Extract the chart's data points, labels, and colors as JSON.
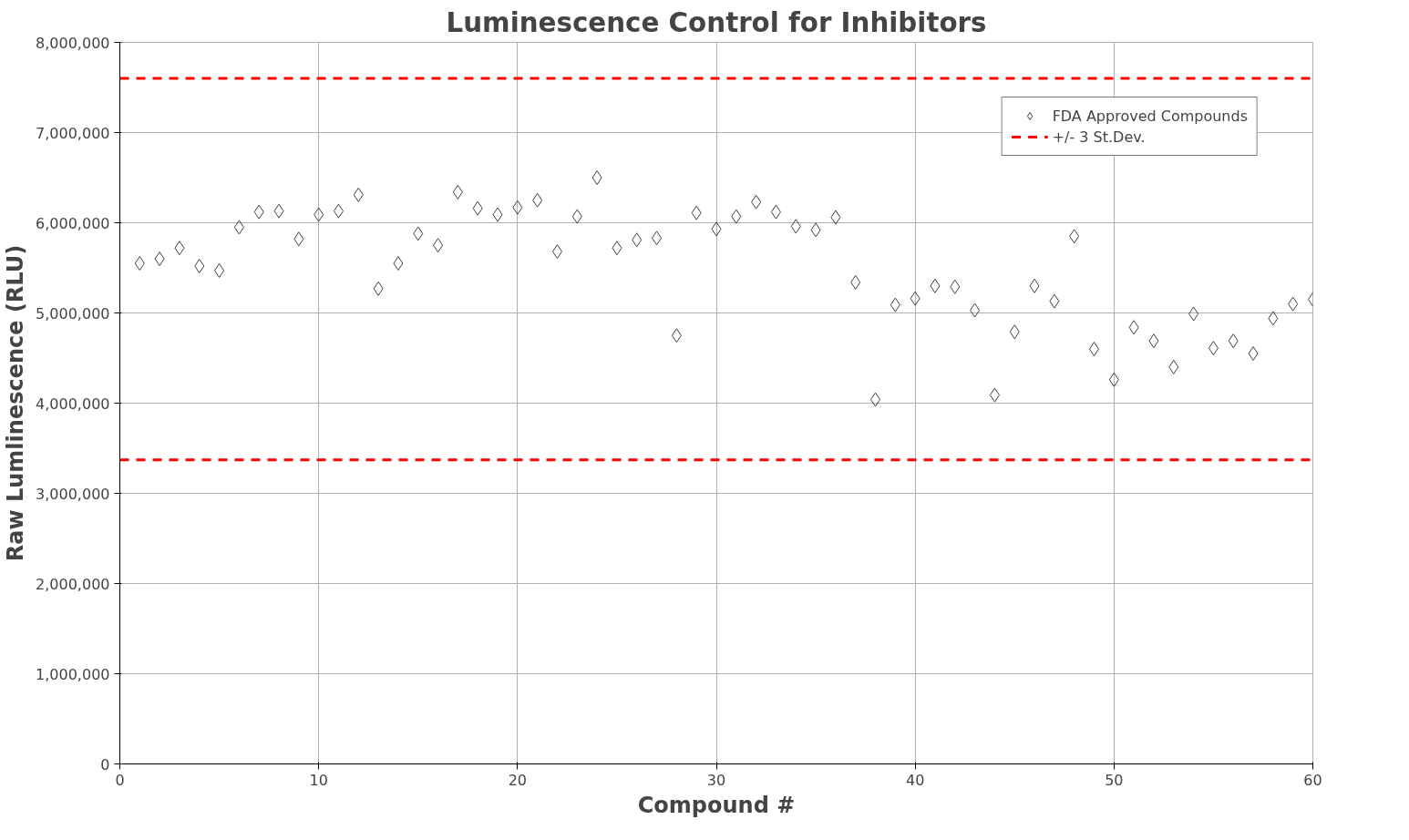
{
  "chart_data": {
    "type": "scatter",
    "title": "Luminescence Control for Inhibitors",
    "xlabel": "Compound #",
    "ylabel": "Raw Lumlinescence (RLU)",
    "x": [
      1,
      2,
      3,
      4,
      5,
      6,
      7,
      8,
      9,
      10,
      11,
      12,
      13,
      14,
      15,
      16,
      17,
      18,
      19,
      20,
      21,
      22,
      23,
      24,
      25,
      26,
      27,
      28,
      29,
      30,
      31,
      32,
      33,
      34,
      35,
      36,
      37,
      38,
      39,
      40,
      41,
      42,
      43,
      44,
      45,
      46,
      47,
      48,
      49,
      50,
      51,
      52,
      53,
      54,
      55,
      56,
      57,
      58,
      59,
      60
    ],
    "series": [
      {
        "name": "FDA Approved Compounds",
        "color": "#404040",
        "values": [
          5550000,
          5600000,
          5720000,
          5520000,
          5470000,
          5950000,
          6120000,
          6130000,
          5820000,
          6090000,
          6130000,
          6310000,
          5270000,
          5550000,
          5880000,
          5750000,
          6340000,
          6160000,
          6090000,
          6170000,
          6250000,
          5680000,
          6070000,
          6500000,
          5720000,
          5810000,
          5830000,
          4750000,
          6110000,
          5930000,
          6070000,
          6230000,
          6120000,
          5960000,
          5920000,
          6060000,
          5340000,
          4040000,
          5090000,
          5160000,
          5300000,
          5290000,
          5030000,
          4090000,
          4790000,
          5300000,
          5130000,
          5850000,
          4600000,
          4260000,
          4840000,
          4690000,
          4400000,
          4990000,
          4610000,
          4690000,
          4550000,
          4940000,
          5100000,
          5150000
        ]
      }
    ],
    "marker": "diamond",
    "ref_lines": [
      {
        "axis": "y",
        "value": 7600000,
        "label": "+/- 3 St.Dev.",
        "color": "#ff0000",
        "line_style": "dashed"
      },
      {
        "axis": "y",
        "value": 3370000,
        "color": "#ff0000",
        "line_style": "dashed"
      }
    ],
    "xlim": [
      0,
      60
    ],
    "xticks": [
      0,
      10,
      20,
      30,
      40,
      50,
      60
    ],
    "ylim": [
      0,
      8000000
    ],
    "yticks": [
      {
        "value": 0,
        "label": "0"
      },
      {
        "value": 1000000,
        "label": "1,000,000"
      },
      {
        "value": 2000000,
        "label": "2,000,000"
      },
      {
        "value": 3000000,
        "label": "3,000,000"
      },
      {
        "value": 4000000,
        "label": "4,000,000"
      },
      {
        "value": 5000000,
        "label": "5,000,000"
      },
      {
        "value": 6000000,
        "label": "6,000,000"
      },
      {
        "value": 7000000,
        "label": "7,000,000"
      },
      {
        "value": 8000000,
        "label": "8,000,000"
      }
    ],
    "grid": true,
    "legend": "top right"
  }
}
